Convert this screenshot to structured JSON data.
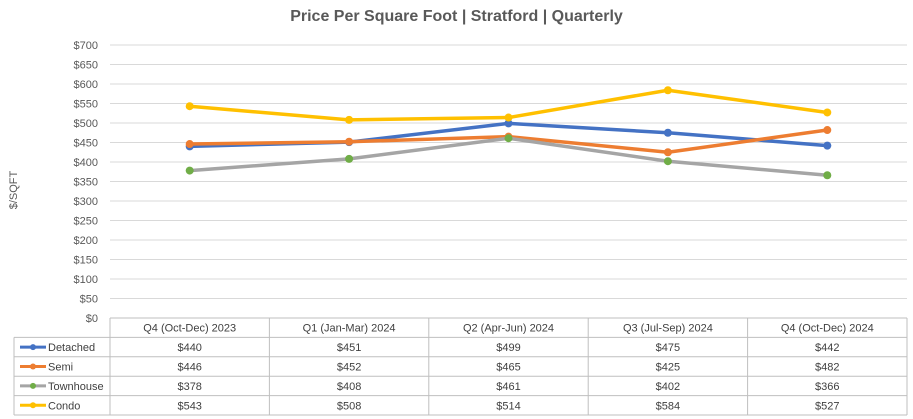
{
  "chart_data": {
    "type": "line",
    "title": "Price Per Square Foot | Stratford | Quarterly",
    "xlabel": "",
    "ylabel": "$/SQFT",
    "ylim": [
      0,
      700
    ],
    "y_ticks": [
      "$0",
      "$50",
      "$100",
      "$150",
      "$200",
      "$250",
      "$300",
      "$350",
      "$400",
      "$450",
      "$500",
      "$550",
      "$600",
      "$650",
      "$700"
    ],
    "grid": true,
    "legend": "data table",
    "categories": [
      "Q4 (Oct-Dec) 2023",
      "Q1 (Jan-Mar) 2024",
      "Q2 (Apr-Jun) 2024",
      "Q3 (Jul-Sep) 2024",
      "Q4 (Oct-Dec) 2024"
    ],
    "series": [
      {
        "name": "Detached",
        "color": "#4472C4",
        "values": [
          440,
          451,
          499,
          475,
          442
        ],
        "labels": [
          "$440",
          "$451",
          "$499",
          "$475",
          "$442"
        ]
      },
      {
        "name": "Semi",
        "color": "#ED7D31",
        "values": [
          446,
          452,
          465,
          425,
          482
        ],
        "labels": [
          "$446",
          "$452",
          "$465",
          "$425",
          "$482"
        ]
      },
      {
        "name": "Townhouse",
        "color": "#A5A5A5",
        "marker_color": "#70AD47",
        "values": [
          378,
          408,
          461,
          402,
          366
        ],
        "labels": [
          "$378",
          "$408",
          "$461",
          "$402",
          "$366"
        ]
      },
      {
        "name": "Condo",
        "color": "#FFC000",
        "values": [
          543,
          508,
          514,
          584,
          527
        ],
        "labels": [
          "$543",
          "$508",
          "$514",
          "$584",
          "$527"
        ]
      }
    ]
  }
}
